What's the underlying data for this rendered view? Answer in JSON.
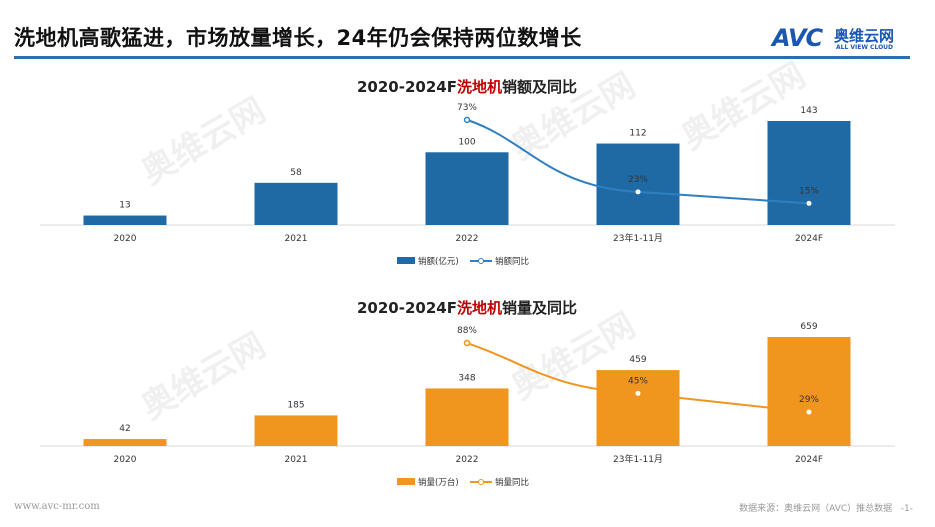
{
  "header": {
    "title": "洗地机高歌猛进，市场放量增长，24年仍会保持两位数增长",
    "logo_text": "AVC",
    "logo_cn": "奥维云网",
    "logo_en": "ALL VIEW CLOUD"
  },
  "footer": {
    "website": "www.avc-mr.com",
    "source": "数据来源：奥维云网（AVC）推总数据",
    "page": "-1-"
  },
  "watermark": "奥维云网",
  "chart_data": [
    {
      "type": "bar+line",
      "title_prefix": "2020-2024F",
      "title_highlight": "洗地机",
      "title_suffix": "销额及同比",
      "categories": [
        "2020",
        "2021",
        "2022",
        "23年1-11月",
        "2024F"
      ],
      "series": [
        {
          "name": "销额(亿元)",
          "type": "bar",
          "values": [
            13,
            58,
            100,
            112,
            143
          ],
          "color": "#1f6aa5"
        },
        {
          "name": "销额同比",
          "type": "line",
          "values": [
            null,
            null,
            73,
            23,
            15
          ],
          "labels": [
            "",
            "",
            "73%",
            "23%",
            "15%"
          ],
          "color": "#2f7fc1"
        }
      ]
    },
    {
      "type": "bar+line",
      "title_prefix": "2020-2024F",
      "title_highlight": "洗地机",
      "title_suffix": "销量及同比",
      "categories": [
        "2020",
        "2021",
        "2022",
        "23年1-11月",
        "2024F"
      ],
      "series": [
        {
          "name": "销量(万台)",
          "type": "bar",
          "values": [
            42,
            185,
            348,
            459,
            659
          ],
          "color": "#f0951e"
        },
        {
          "name": "销量同比",
          "type": "line",
          "values": [
            null,
            null,
            88,
            45,
            29
          ],
          "labels": [
            "",
            "",
            "88%",
            "45%",
            "29%"
          ],
          "color": "#f0951e"
        }
      ]
    }
  ],
  "highlight_color": "#c00000"
}
